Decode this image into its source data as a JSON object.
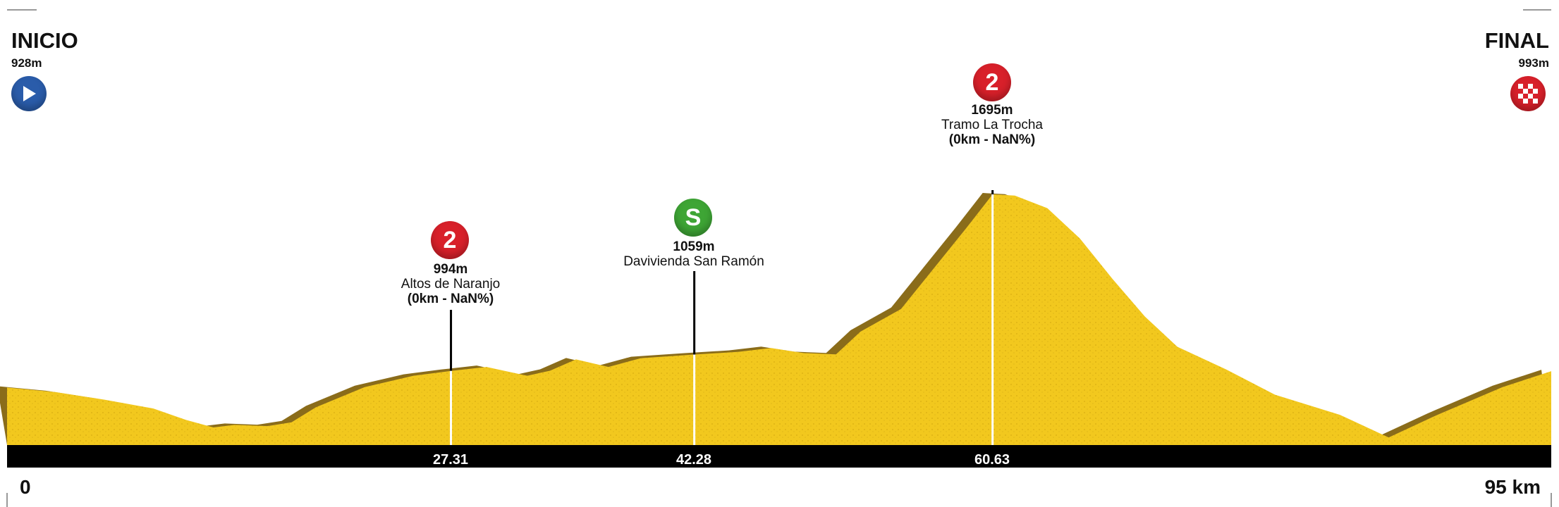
{
  "header": {
    "start_label": "INICIO",
    "start_alt": "928m",
    "finish_label": "FINAL",
    "finish_alt": "993m",
    "start_icon": "play-icon",
    "finish_icon": "checkered-flag-icon"
  },
  "axis": {
    "start_km": "0",
    "end_km": "95 km"
  },
  "colors": {
    "terrain": "#f2c81e",
    "terrain_shade": "#8a6c1a",
    "axis_bar": "#000000",
    "kom_badge": "#d8202a",
    "sprint_badge": "#3ea535",
    "start_badge": "#2a5caa"
  },
  "climbs": [
    {
      "badge": "2",
      "badge_type": "kom",
      "altitude": "994m",
      "name": "Altos de Naranjo",
      "detail": "(0km - NaN%)",
      "km_label": "27.31"
    },
    {
      "badge": "S",
      "badge_type": "sprint",
      "altitude": "1059m",
      "name": "Davivienda San Ramón",
      "detail": "",
      "km_label": "42.28"
    },
    {
      "badge": "2",
      "badge_type": "kom",
      "altitude": "1695m",
      "name": "Tramo La Trocha",
      "detail": "(0km - NaN%)",
      "km_label": "60.63"
    }
  ],
  "chart_data": {
    "type": "area",
    "xlabel": "",
    "ylabel": "",
    "xlim": [
      0,
      95
    ],
    "x": [
      0,
      3,
      6,
      9,
      11,
      12.7,
      14,
      16,
      17.5,
      19,
      22,
      25,
      27.3,
      29.5,
      32,
      33.4,
      35,
      37,
      39,
      42.28,
      45,
      47,
      49,
      51,
      52.5,
      55,
      57,
      59,
      60.63,
      62,
      64,
      66,
      68,
      70,
      72,
      75,
      78,
      82,
      85,
      88,
      92,
      95
    ],
    "y": [
      928,
      910,
      880,
      845,
      800,
      770,
      780,
      775,
      790,
      850,
      930,
      975,
      994,
      1010,
      975,
      995,
      1040,
      1010,
      1045,
      1059,
      1070,
      1085,
      1065,
      1060,
      1150,
      1240,
      1400,
      1560,
      1695,
      1690,
      1640,
      1520,
      1360,
      1210,
      1090,
      1000,
      900,
      820,
      730,
      820,
      930,
      993
    ],
    "markers": [
      {
        "km": 27.31,
        "altitude": 994,
        "name": "Altos de Naranjo"
      },
      {
        "km": 42.28,
        "altitude": 1059,
        "name": "Davivienda San Ramón"
      },
      {
        "km": 60.63,
        "altitude": 1695,
        "name": "Tramo La Trocha"
      }
    ]
  }
}
